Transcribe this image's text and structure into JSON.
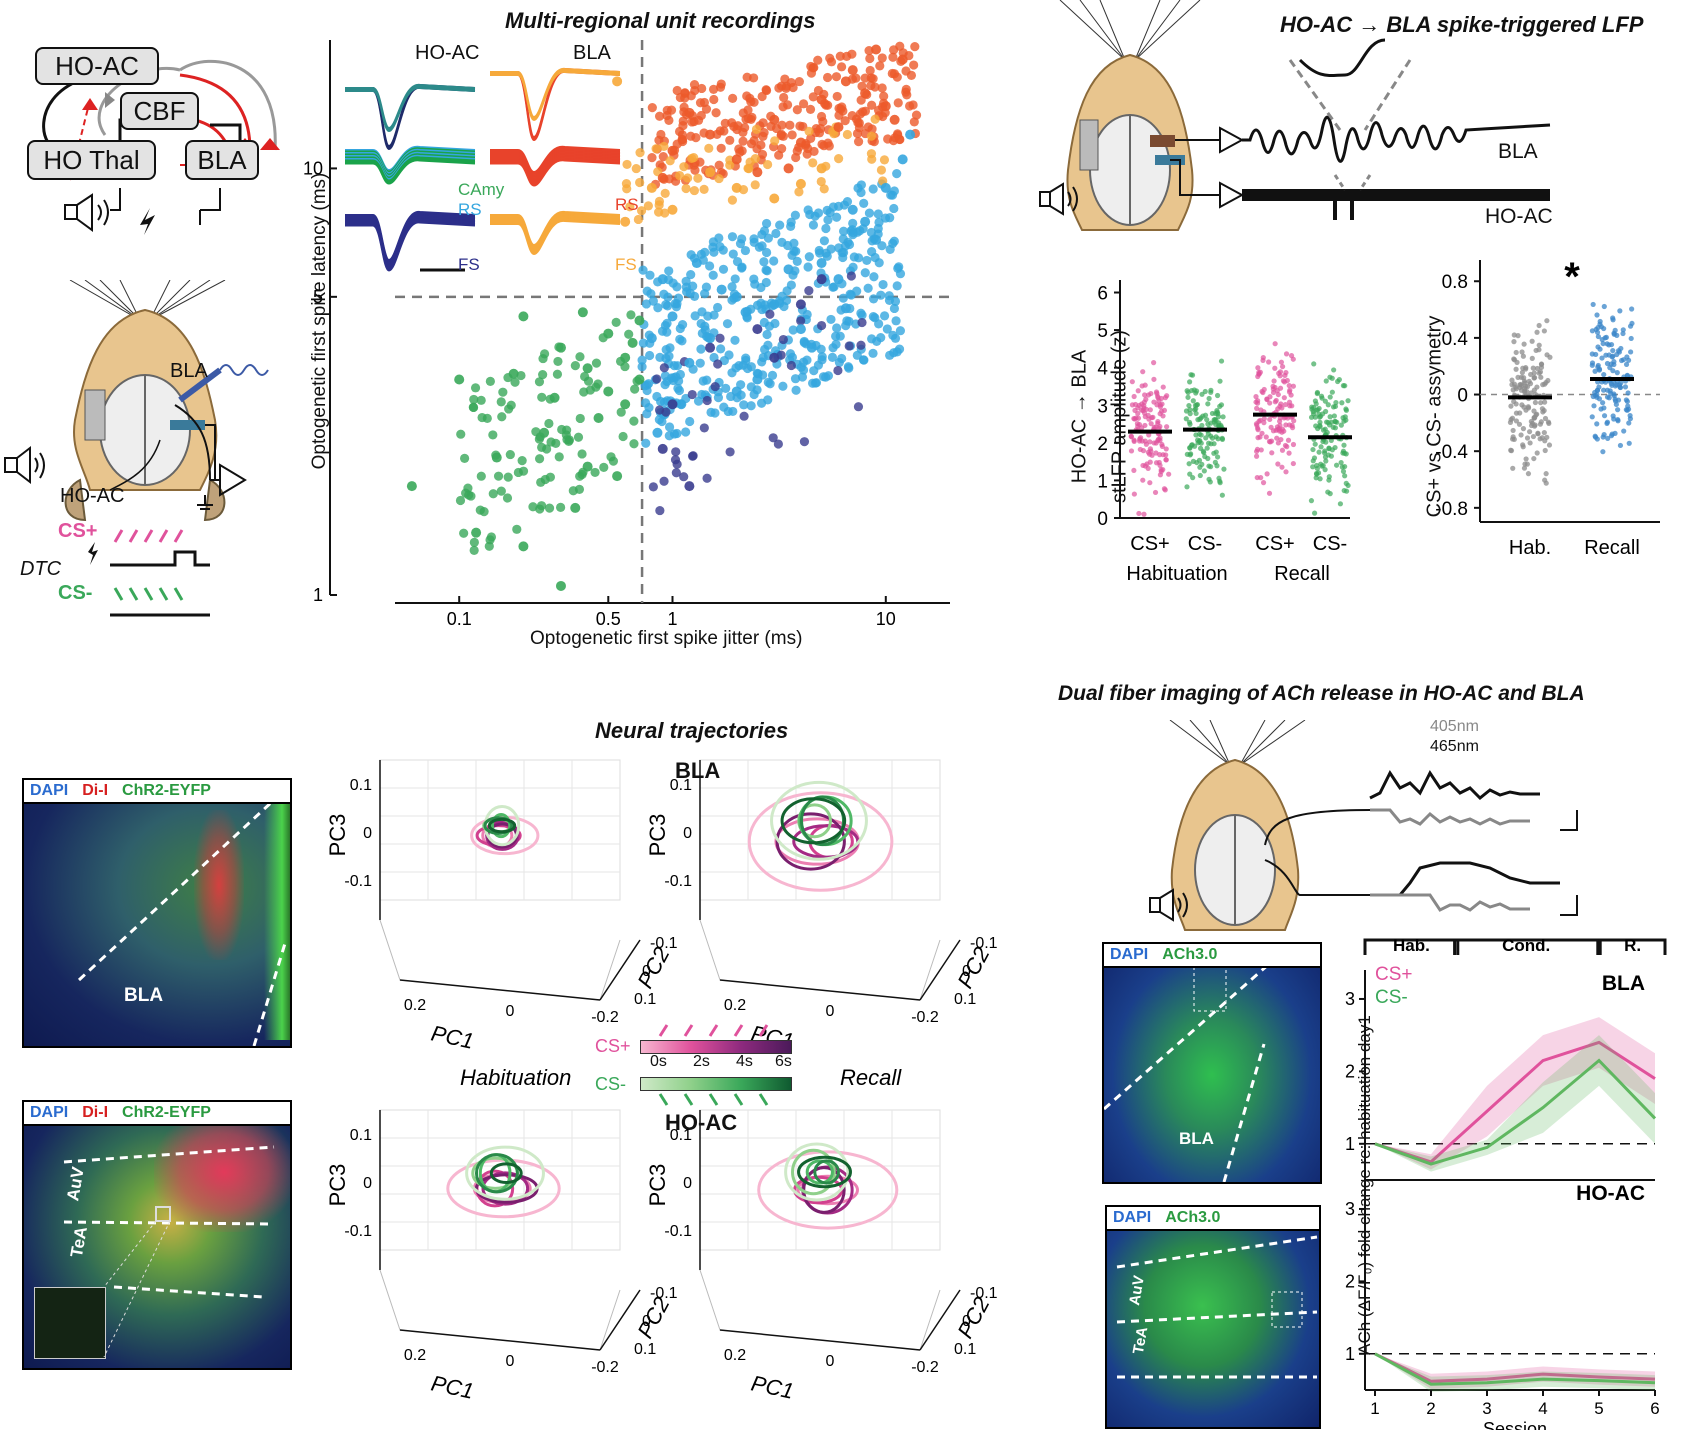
{
  "circuit": {
    "nodes": [
      "HO-AC",
      "CBF",
      "HO Thal",
      "BLA"
    ],
    "cs_plus": "CS+",
    "cs_minus": "CS-",
    "dtc": "DTC"
  },
  "rec_schematic": {
    "bla": "BLA",
    "hoac": "HO-AC"
  },
  "scatter": {
    "title": "Multi-regional unit recordings",
    "ylabel": "Optogenetic first spike latency (ms)",
    "xlabel": "Optogenetic first spike jitter (ms)",
    "yticks": [
      "10",
      "5",
      "1"
    ],
    "xticks": [
      "0.1",
      "0.5",
      "1",
      "10"
    ],
    "waveform_headers": [
      "HO-AC",
      "BLA"
    ],
    "wave_labels": {
      "camy": "CAmy",
      "rs_left": "RS",
      "fs_left": "FS",
      "rs_right": "RS",
      "fs_right": "FS"
    },
    "colors": {
      "camy": "#3aa85a",
      "rs_left": "#35a6df",
      "fs_left": "#2c2f8a",
      "rs_right": "#e8432b",
      "fs_right": "#f6a93b"
    }
  },
  "chart_data": [
    {
      "type": "scatter",
      "title": "Multi-regional unit recordings",
      "xlabel": "Optogenetic first spike jitter (ms)",
      "ylabel": "Optogenetic first spike latency (ms)",
      "xscale": "log",
      "yscale": "log",
      "xlim": [
        0.05,
        20
      ],
      "ylim": [
        1,
        20
      ],
      "series": [
        {
          "name": "CAmy",
          "color": "#3aa85a",
          "points": [
            [
              0.1,
              3.2
            ],
            [
              0.2,
              4.5
            ],
            [
              0.3,
              3.8
            ],
            [
              0.4,
              3.4
            ],
            [
              0.5,
              4.1
            ],
            [
              0.6,
              3.6
            ],
            [
              0.7,
              3.2
            ],
            [
              0.25,
              2.4
            ],
            [
              0.15,
              2.1
            ],
            [
              0.35,
              1.6
            ],
            [
              0.06,
              1.8
            ],
            [
              0.12,
              1.4
            ],
            [
              0.45,
              2.6
            ],
            [
              0.55,
              1.9
            ],
            [
              0.3,
              1.05
            ],
            [
              0.2,
              1.3
            ],
            [
              0.4,
              2.0
            ],
            [
              0.6,
              2.8
            ],
            [
              0.7,
              4.4
            ],
            [
              0.18,
              3.3
            ],
            [
              0.28,
              2.9
            ],
            [
              0.5,
              3.0
            ],
            [
              0.65,
              3.9
            ],
            [
              0.38,
              4.6
            ]
          ]
        },
        {
          "name": "RS",
          "color": "#35a6df",
          "points": [
            [
              1.0,
              4.5
            ],
            [
              1.5,
              4.0
            ],
            [
              2.0,
              5.0
            ],
            [
              3.0,
              4.8
            ],
            [
              5.0,
              6.0
            ],
            [
              8.0,
              7.5
            ],
            [
              10.0,
              9.0
            ],
            [
              12.0,
              10.5
            ],
            [
              1.2,
              3.5
            ],
            [
              2.5,
              3.2
            ],
            [
              4.0,
              4.2
            ],
            [
              6.0,
              5.5
            ],
            [
              0.9,
              5.5
            ],
            [
              1.3,
              6.0
            ],
            [
              2.0,
              3.0
            ],
            [
              0.8,
              4.0
            ],
            [
              3.5,
              5.8
            ],
            [
              7.0,
              8.0
            ],
            [
              9.0,
              6.8
            ],
            [
              1.1,
              2.8
            ],
            [
              2.2,
              4.6
            ],
            [
              4.5,
              3.8
            ],
            [
              13.0,
              12.0
            ],
            [
              0.85,
              2.4
            ],
            [
              1.7,
              5.2
            ],
            [
              6.5,
              4.7
            ]
          ]
        },
        {
          "name": "FS",
          "color": "#3a3c8f",
          "points": [
            [
              1.5,
              3.8
            ],
            [
              2.5,
              4.2
            ],
            [
              4.0,
              4.8
            ],
            [
              1.0,
              2.8
            ],
            [
              3.0,
              3.6
            ],
            [
              1.2,
              1.8
            ],
            [
              0.9,
              2.2
            ],
            [
              5.0,
              5.5
            ]
          ]
        },
        {
          "name": "RS",
          "color": "#ec5a2a",
          "points": [
            [
              1.0,
              11
            ],
            [
              1.5,
              12
            ],
            [
              2.0,
              10.5
            ],
            [
              3.0,
              13
            ],
            [
              4.0,
              11.5
            ],
            [
              6.0,
              12.5
            ],
            [
              8.0,
              15
            ],
            [
              10.0,
              14
            ],
            [
              12.0,
              18
            ],
            [
              0.9,
              9.5
            ],
            [
              2.5,
              9.8
            ],
            [
              5.0,
              14.5
            ],
            [
              7.0,
              17
            ],
            [
              9.0,
              19
            ],
            [
              11.0,
              13
            ],
            [
              1.2,
              13.5
            ],
            [
              3.5,
              10
            ],
            [
              6.5,
              16
            ]
          ]
        },
        {
          "name": "FS",
          "color": "#f7a93a",
          "points": [
            [
              1.0,
              8
            ],
            [
              2.0,
              9
            ],
            [
              3.0,
              8.5
            ],
            [
              5.0,
              10
            ],
            [
              0.8,
              9
            ],
            [
              1.5,
              9.8
            ],
            [
              4.0,
              9.2
            ],
            [
              0.6,
              7.5
            ],
            [
              0.55,
              16
            ]
          ]
        }
      ]
    },
    {
      "type": "scatter",
      "title": "HO-AC → BLA spike-triggered LFP",
      "ylabel": "HO-AC → BLA stLFP amplitude (z)",
      "categories": [
        "CS+",
        "CS-",
        "CS+",
        "CS-"
      ],
      "groups": [
        "Habituation",
        "Recall"
      ],
      "ylim": [
        0,
        6.5
      ],
      "series": [
        {
          "name": "median",
          "values": [
            2.3,
            2.35,
            2.75,
            2.15
          ]
        }
      ]
    },
    {
      "type": "scatter",
      "ylabel": "CS+ vs CS- assymetry",
      "categories": [
        "Hab.",
        "Recall"
      ],
      "ylim": [
        -0.9,
        0.95
      ],
      "series": [
        {
          "name": "median",
          "values": [
            -0.02,
            0.11
          ]
        }
      ],
      "annotations": [
        "*"
      ]
    },
    {
      "type": "line",
      "panel": "BLA",
      "xlabel": "Session",
      "ylabel": "ACh (ΔF/F₀) fold change re: habituation day1",
      "x": [
        1,
        2,
        3,
        4,
        5,
        6
      ],
      "ylim": [
        0.5,
        3.4
      ],
      "series": [
        {
          "name": "CS+",
          "color": "#e0529c",
          "values": [
            1.0,
            0.75,
            1.45,
            2.15,
            2.4,
            1.9
          ]
        },
        {
          "name": "CS-",
          "color": "#5fb760",
          "values": [
            1.0,
            0.72,
            0.95,
            1.5,
            2.15,
            1.35
          ]
        }
      ]
    },
    {
      "type": "line",
      "panel": "HO-AC",
      "xlabel": "Session",
      "ylabel": "ACh (ΔF/F₀) fold change re: habituation day1",
      "x": [
        1,
        2,
        3,
        4,
        5,
        6
      ],
      "ylim": [
        0.5,
        3.4
      ],
      "series": [
        {
          "name": "CS+",
          "color": "#e0529c",
          "values": [
            1.0,
            0.62,
            0.65,
            0.72,
            0.68,
            0.65
          ]
        },
        {
          "name": "CS-",
          "color": "#5fb760",
          "values": [
            1.0,
            0.58,
            0.6,
            0.65,
            0.63,
            0.6
          ]
        }
      ]
    }
  ],
  "stlfp": {
    "title": "HO-AC → BLA spike-triggered LFP",
    "trace_labels": [
      "BLA",
      "HO-AC"
    ],
    "ylabel1": "HO-AC → BLA",
    "ylabel2": "stLFP amplitude (z)",
    "yticks": [
      "6",
      "5",
      "4",
      "3",
      "2",
      "1",
      "0"
    ],
    "xcats": [
      "CS+",
      "CS-",
      "CS+",
      "CS-"
    ],
    "groups": [
      "Habituation",
      "Recall"
    ],
    "asym_ylabel": "CS+ vs CS- assymetry",
    "asym_yticks": [
      "0.8",
      "0.4",
      "0",
      "-0.4",
      "-0.8"
    ],
    "asym_xcats": [
      "Hab.",
      "Recall"
    ],
    "star": "*"
  },
  "micro_top": {
    "dapi": "DAPI",
    "dii": "Di-I",
    "chr2": "ChR2-EYFP",
    "region": "BLA"
  },
  "micro_bottom": {
    "dapi": "DAPI",
    "dii": "Di-I",
    "chr2": "ChR2-EYFP",
    "auv": "AuV",
    "tea": "TeA"
  },
  "traj": {
    "title": "Neural trajectories",
    "bla": "BLA",
    "hoac": "HO-AC",
    "habituation": "Habituation",
    "recall": "Recall",
    "pc1": "PC1",
    "pc2": "PC2",
    "pc3": "PC3",
    "pc3_ticks": [
      "0.1",
      "0",
      "-0.1"
    ],
    "pc1_ticks": [
      "0.2",
      "0",
      "-0.2"
    ],
    "pc2_ticks": [
      "-0.1",
      "0",
      "0.1"
    ],
    "cs_plus": "CS+",
    "cs_minus": "CS-",
    "time_ticks": [
      "0s",
      "2s",
      "4s",
      "6s"
    ]
  },
  "fiber": {
    "title": "Dual fiber imaging of ACh release in HO-AC and BLA",
    "nm405": "405nm",
    "nm465": "465nm",
    "micro1": {
      "dapi": "DAPI",
      "ach": "ACh3.0",
      "region": "BLA"
    },
    "micro2": {
      "dapi": "DAPI",
      "ach": "ACh3.0",
      "auv": "AuV",
      "tea": "TeA"
    },
    "phases": [
      "Hab.",
      "Cond.",
      "R."
    ],
    "panel_bla": "BLA",
    "panel_hoac": "HO-AC",
    "legend_csp": "CS+",
    "legend_csm": "CS-",
    "yticks": [
      "3",
      "2",
      "1"
    ],
    "xticks": [
      "1",
      "2",
      "3",
      "4",
      "5",
      "6"
    ],
    "xlabel": "Session",
    "ylabel": "ACh (ΔF/F₀) fold change re: habituation day1"
  }
}
